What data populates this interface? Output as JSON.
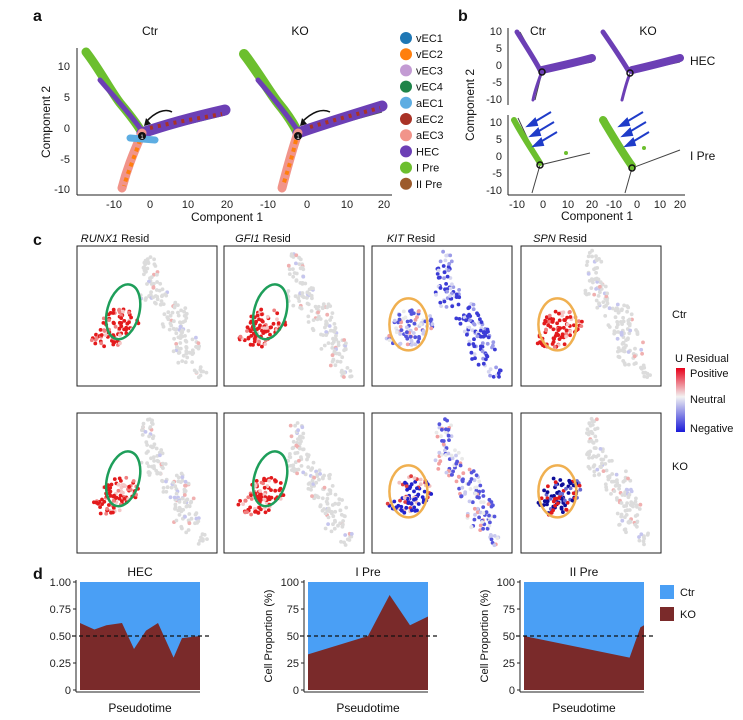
{
  "panel_labels": {
    "a": "a",
    "b": "b",
    "c": "c",
    "d": "d"
  },
  "panel_a": {
    "ctr_title": "Ctr",
    "ko_title": "KO",
    "xlabel": "Component 1",
    "ylabel": "Component 2",
    "x_ticks": [
      "-10",
      "0",
      "10",
      "20"
    ],
    "y_ticks": [
      "10",
      "5",
      "0",
      "-5",
      "-10"
    ],
    "branch_point": "1",
    "legend": [
      {
        "label": "vEC1",
        "color": "#1f77b4"
      },
      {
        "label": "vEC2",
        "color": "#ff7f0e"
      },
      {
        "label": "vEC3",
        "color": "#c39bd3"
      },
      {
        "label": "vEC4",
        "color": "#1e8449"
      },
      {
        "label": "aEC1",
        "color": "#5dade2"
      },
      {
        "label": "aEC2",
        "color": "#a93226"
      },
      {
        "label": "aEC3",
        "color": "#f1948a"
      },
      {
        "label": "HEC",
        "color": "#6c3fb5"
      },
      {
        "label": "I Pre",
        "color": "#6cbf2e"
      },
      {
        "label": "II Pre",
        "color": "#9c5b2c"
      }
    ]
  },
  "panel_b": {
    "ctr_title": "Ctr",
    "ko_title": "KO",
    "row1_label": "HEC",
    "row2_label": "I Pre",
    "xlabel": "Component 1",
    "ylabel": "Component 2",
    "x_ticks": [
      "-10",
      "0",
      "10",
      "20"
    ],
    "y_ticks": [
      "10",
      "5",
      "0",
      "-5",
      "-10"
    ]
  },
  "panel_c": {
    "columns": [
      {
        "gene": "RUNX1",
        "suffix": " Resid"
      },
      {
        "gene": "GFI1",
        "suffix": " Resid"
      },
      {
        "gene": "KIT",
        "suffix": " Resid"
      },
      {
        "gene": "SPN",
        "suffix": " Resid"
      }
    ],
    "row_labels": [
      "Ctr",
      "KO"
    ],
    "legend_title": "U Residual",
    "legend_positive": "Positive",
    "legend_neutral": "Neutral",
    "legend_negative": "Negative"
  },
  "chart_data": [
    {
      "type": "area",
      "title": "HEC",
      "xlabel": "Pseudotime",
      "ylabel": "",
      "y_ticks": [
        "1.00",
        "0.75",
        "0.50",
        "0.25",
        "0"
      ],
      "ylim": [
        0,
        1
      ],
      "reference_line": 0.5,
      "x": [
        0,
        0.12,
        0.22,
        0.35,
        0.45,
        0.55,
        0.65,
        0.78,
        0.85,
        1.0
      ],
      "series": [
        {
          "name": "KO",
          "color": "#7a2a2a",
          "values": [
            0.62,
            0.56,
            0.6,
            0.62,
            0.38,
            0.55,
            0.62,
            0.3,
            0.48,
            0.5
          ]
        },
        {
          "name": "Ctr",
          "color": "#4a9ff5",
          "values": [
            1,
            1,
            1,
            1,
            1,
            1,
            1,
            1,
            1,
            1
          ]
        }
      ],
      "legend": [
        "Ctr",
        "KO"
      ]
    },
    {
      "type": "area",
      "title": "I Pre",
      "xlabel": "Pseudotime",
      "ylabel": "Cell Proportion (%)",
      "y_ticks": [
        "100",
        "75",
        "50",
        "25",
        "0"
      ],
      "ylim": [
        0,
        100
      ],
      "reference_line": 50,
      "x": [
        0,
        0.5,
        0.68,
        0.85,
        1.0
      ],
      "series": [
        {
          "name": "KO",
          "color": "#7a2a2a",
          "values": [
            33,
            50,
            88,
            60,
            68
          ]
        },
        {
          "name": "Ctr",
          "color": "#4a9ff5",
          "values": [
            100,
            100,
            100,
            100,
            100
          ]
        }
      ]
    },
    {
      "type": "area",
      "title": "II Pre",
      "xlabel": "Pseudotime",
      "ylabel": "Cell Proportion (%)",
      "y_ticks": [
        "100",
        "75",
        "50",
        "25",
        "0"
      ],
      "ylim": [
        0,
        100
      ],
      "reference_line": 50,
      "x": [
        0,
        0.88,
        0.97,
        1.0
      ],
      "series": [
        {
          "name": "KO",
          "color": "#7a2a2a",
          "values": [
            50,
            30,
            58,
            60
          ]
        },
        {
          "name": "Ctr",
          "color": "#4a9ff5",
          "values": [
            100,
            100,
            100,
            100
          ]
        }
      ]
    }
  ],
  "panel_d_legend": [
    {
      "label": "Ctr",
      "color": "#4a9ff5"
    },
    {
      "label": "KO",
      "color": "#7a2a2a"
    }
  ]
}
